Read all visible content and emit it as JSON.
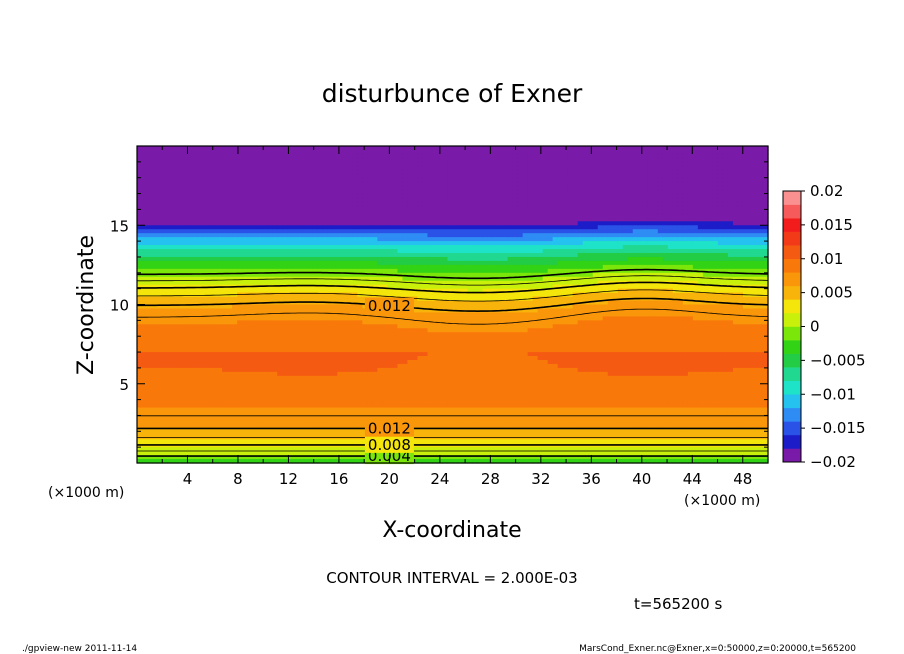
{
  "chart_data": {
    "type": "contour",
    "title": "disturbunce of Exner",
    "xlabel": "X-coordinate",
    "ylabel": "Z-coordinate",
    "x_unit": "(×1000 m)",
    "y_unit": "(×1000 m)",
    "xlim": [
      0,
      50
    ],
    "ylim": [
      0,
      20
    ],
    "x_ticks": [
      4,
      8,
      12,
      16,
      20,
      24,
      28,
      32,
      36,
      40,
      44,
      48
    ],
    "y_ticks": [
      5,
      10,
      15
    ],
    "x_tick_labels": [
      "4",
      "8",
      "12",
      "16",
      "20",
      "24",
      "28",
      "32",
      "36",
      "40",
      "44",
      "48"
    ],
    "y_tick_labels": [
      "5",
      "10",
      "15"
    ],
    "colorbar": {
      "min": -0.02,
      "max": 0.02,
      "step": 0.0025,
      "tick_labels": [
        "0.02",
        "0.015",
        "0.01",
        "0.005",
        "0",
        "−0.005",
        "−0.01",
        "−0.015",
        "−0.02"
      ],
      "colors": [
        "#7a1aa8",
        "#1c1cc8",
        "#2a52e6",
        "#2f8cf5",
        "#25c2f0",
        "#1fe3c8",
        "#20d890",
        "#22cc44",
        "#32d214",
        "#7ae60a",
        "#c8f00a",
        "#f4e60a",
        "#f8b40a",
        "#fa960a",
        "#f8780a",
        "#f55a12",
        "#f23a18",
        "#f21c1c",
        "#f65a5a",
        "#fa9090"
      ]
    },
    "contour_levels": [
      0.004,
      0.006,
      0.008,
      0.01,
      0.012,
      0.014
    ],
    "contour_labels": [
      "0.004",
      "0.008",
      "0.012",
      "0.012"
    ],
    "contour_interval": "CONTOUR INTERVAL = 2.000E-03",
    "time_label": "t=565200 s"
  },
  "footer": {
    "left": "./gpview-new   2011-11-14",
    "right": "MarsCond_Exner.nc@Exner,x=0:50000,z=0:20000,t=565200"
  }
}
